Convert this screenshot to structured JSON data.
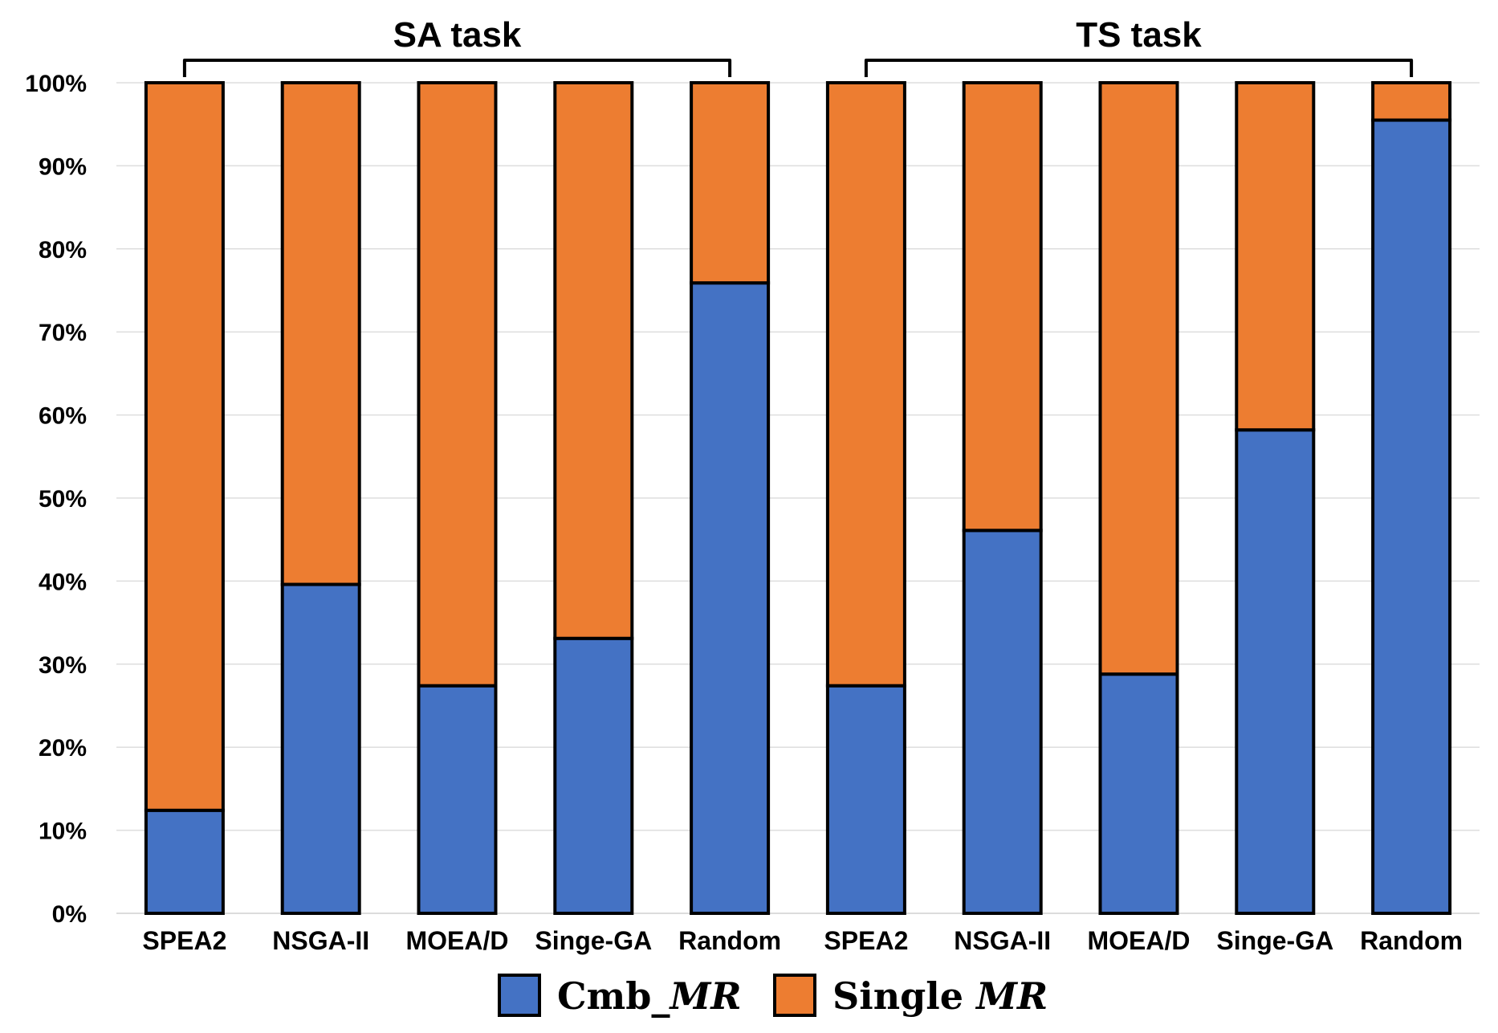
{
  "chart_data": {
    "type": "bar",
    "stacked": true,
    "categories": [
      "SPEA2",
      "NSGA-II",
      "MOEA/D",
      "Singe-GA",
      "Random",
      "SPEA2",
      "NSGA-II",
      "MOEA/D",
      "Singe-GA",
      "Random"
    ],
    "groups": [
      {
        "label": "SA task",
        "categories": [
          0,
          4
        ]
      },
      {
        "label": "TS task",
        "categories": [
          5,
          9
        ]
      }
    ],
    "series": [
      {
        "name": "Cmb_MR",
        "legend_prefix": "Cmb_",
        "legend_italic": "MR",
        "color": "#4472C4",
        "values": [
          12.4,
          39.6,
          27.4,
          33.1,
          75.9,
          27.4,
          46.1,
          28.8,
          58.2,
          95.5
        ]
      },
      {
        "name": "Single MR",
        "legend_prefix": "Single ",
        "legend_italic": "MR",
        "color": "#ED7D31",
        "values": [
          87.6,
          60.4,
          72.6,
          66.9,
          24.1,
          72.6,
          53.9,
          71.2,
          41.8,
          4.5
        ]
      }
    ],
    "yticks": [
      "0%",
      "10%",
      "20%",
      "30%",
      "40%",
      "50%",
      "60%",
      "70%",
      "80%",
      "90%",
      "100%"
    ],
    "ylim": [
      0,
      100
    ],
    "grid": true,
    "legend_position": "bottom"
  }
}
